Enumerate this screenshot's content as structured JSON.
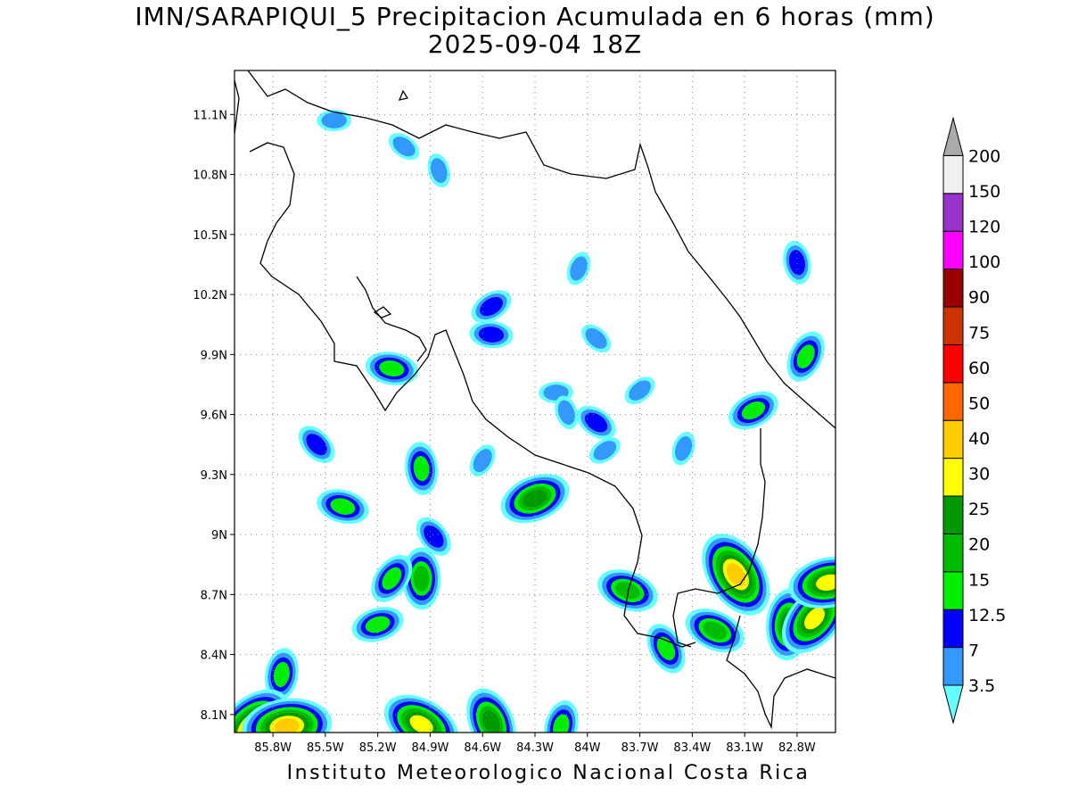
{
  "title": {
    "line1": "IMN/SARAPIQUI_5 Precipitacion Acumulada en 6 horas (mm)",
    "line2": "2025-09-04 18Z"
  },
  "footer": "Instituto Meteorologico Nacional Costa Rica",
  "map": {
    "lon_range": [
      -86.02,
      -82.58
    ],
    "lat_range": [
      8.01,
      11.32
    ],
    "lon_ticks": [
      {
        "value": -85.8,
        "label": "85.8W"
      },
      {
        "value": -85.5,
        "label": "85.5W"
      },
      {
        "value": -85.2,
        "label": "85.2W"
      },
      {
        "value": -84.9,
        "label": "84.9W"
      },
      {
        "value": -84.6,
        "label": "84.6W"
      },
      {
        "value": -84.3,
        "label": "84.3W"
      },
      {
        "value": -84.0,
        "label": "84W"
      },
      {
        "value": -83.7,
        "label": "83.7W"
      },
      {
        "value": -83.4,
        "label": "83.4W"
      },
      {
        "value": -83.1,
        "label": "83.1W"
      },
      {
        "value": -82.8,
        "label": "82.8W"
      }
    ],
    "lat_ticks": [
      {
        "value": 11.1,
        "label": "11.1N"
      },
      {
        "value": 10.8,
        "label": "10.8N"
      },
      {
        "value": 10.5,
        "label": "10.5N"
      },
      {
        "value": 10.2,
        "label": "10.2N"
      },
      {
        "value": 9.9,
        "label": "9.9N"
      },
      {
        "value": 9.6,
        "label": "9.6N"
      },
      {
        "value": 9.3,
        "label": "9.3N"
      },
      {
        "value": 9.0,
        "label": "9N"
      },
      {
        "value": 8.7,
        "label": "8.7N"
      },
      {
        "value": 8.4,
        "label": "8.4N"
      },
      {
        "value": 8.1,
        "label": "8.1N"
      }
    ],
    "grid": true
  },
  "colorbar": {
    "labels": [
      "3.5",
      "7",
      "12.5",
      "15",
      "20",
      "25",
      "30",
      "40",
      "50",
      "60",
      "75",
      "90",
      "100",
      "120",
      "150",
      "200"
    ],
    "colors": [
      "#66ffff",
      "#3399ff",
      "#0000ff",
      "#00ee00",
      "#00bb00",
      "#009900",
      "#ffff00",
      "#ffcc00",
      "#ff6600",
      "#ff0000",
      "#cc3300",
      "#990000",
      "#ff00ff",
      "#9933cc",
      "#f0f0f0",
      "#aaaaaa"
    ]
  },
  "precip_cells": [
    {
      "lon": -85.45,
      "lat": 11.07,
      "level": 2
    },
    {
      "lon": -85.05,
      "lat": 10.94,
      "level": 2
    },
    {
      "lon": -84.85,
      "lat": 10.82,
      "level": 2
    },
    {
      "lon": -84.05,
      "lat": 10.33,
      "level": 2
    },
    {
      "lon": -84.55,
      "lat": 10.14,
      "level": 3
    },
    {
      "lon": -84.55,
      "lat": 10.0,
      "level": 3
    },
    {
      "lon": -83.95,
      "lat": 9.98,
      "level": 2
    },
    {
      "lon": -82.8,
      "lat": 10.36,
      "level": 3
    },
    {
      "lon": -82.75,
      "lat": 9.89,
      "level": 4
    },
    {
      "lon": -83.05,
      "lat": 9.62,
      "level": 4
    },
    {
      "lon": -85.12,
      "lat": 9.83,
      "level": 4
    },
    {
      "lon": -85.55,
      "lat": 9.45,
      "level": 3
    },
    {
      "lon": -84.95,
      "lat": 9.33,
      "level": 4
    },
    {
      "lon": -84.6,
      "lat": 9.37,
      "level": 2
    },
    {
      "lon": -84.3,
      "lat": 9.18,
      "level": 6
    },
    {
      "lon": -85.4,
      "lat": 9.14,
      "level": 4
    },
    {
      "lon": -84.88,
      "lat": 8.99,
      "level": 3
    },
    {
      "lon": -84.95,
      "lat": 8.78,
      "level": 5
    },
    {
      "lon": -85.12,
      "lat": 8.78,
      "level": 4
    },
    {
      "lon": -85.2,
      "lat": 8.55,
      "level": 4
    },
    {
      "lon": -83.77,
      "lat": 8.72,
      "level": 5
    },
    {
      "lon": -83.15,
      "lat": 8.8,
      "level": 8
    },
    {
      "lon": -82.85,
      "lat": 8.55,
      "level": 6
    },
    {
      "lon": -82.7,
      "lat": 8.58,
      "level": 7
    },
    {
      "lon": -82.62,
      "lat": 8.76,
      "level": 7
    },
    {
      "lon": -83.27,
      "lat": 8.52,
      "level": 5
    },
    {
      "lon": -83.55,
      "lat": 8.43,
      "level": 4
    },
    {
      "lon": -85.75,
      "lat": 8.3,
      "level": 4
    },
    {
      "lon": -85.92,
      "lat": 8.04,
      "level": 8
    },
    {
      "lon": -85.72,
      "lat": 8.04,
      "level": 8
    },
    {
      "lon": -84.95,
      "lat": 8.05,
      "level": 7
    },
    {
      "lon": -84.55,
      "lat": 8.06,
      "level": 6
    },
    {
      "lon": -84.15,
      "lat": 8.04,
      "level": 4
    },
    {
      "lon": -83.7,
      "lat": 9.72,
      "level": 2
    },
    {
      "lon": -84.18,
      "lat": 9.71,
      "level": 2
    },
    {
      "lon": -83.95,
      "lat": 9.56,
      "level": 3
    },
    {
      "lon": -84.12,
      "lat": 9.61,
      "level": 2
    },
    {
      "lon": -83.45,
      "lat": 9.43,
      "level": 2
    },
    {
      "lon": -83.9,
      "lat": 9.42,
      "level": 2
    }
  ]
}
